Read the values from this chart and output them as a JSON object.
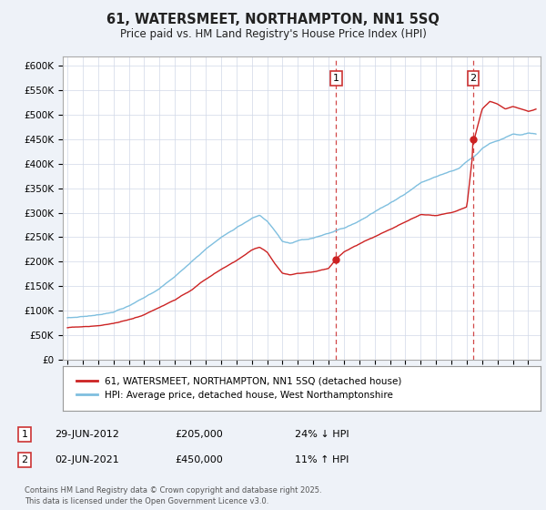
{
  "title": "61, WATERSMEET, NORTHAMPTON, NN1 5SQ",
  "subtitle": "Price paid vs. HM Land Registry's House Price Index (HPI)",
  "ytick_labels": [
    "£0",
    "£50K",
    "£100K",
    "£150K",
    "£200K",
    "£250K",
    "£300K",
    "£350K",
    "£400K",
    "£450K",
    "£500K",
    "£550K",
    "£600K"
  ],
  "yticks": [
    0,
    50000,
    100000,
    150000,
    200000,
    250000,
    300000,
    350000,
    400000,
    450000,
    500000,
    550000,
    600000
  ],
  "hpi_color": "#7fbfdf",
  "price_color": "#cc2222",
  "dashed_color": "#cc3333",
  "legend_label_price": "61, WATERSMEET, NORTHAMPTON, NN1 5SQ (detached house)",
  "legend_label_hpi": "HPI: Average price, detached house, West Northamptonshire",
  "annotation1_date": "29-JUN-2012",
  "annotation1_price": "£205,000",
  "annotation1_pct": "24% ↓ HPI",
  "annotation2_date": "02-JUN-2021",
  "annotation2_price": "£450,000",
  "annotation2_pct": "11% ↑ HPI",
  "footnote": "Contains HM Land Registry data © Crown copyright and database right 2025.\nThis data is licensed under the Open Government Licence v3.0.",
  "background_color": "#eef2f8",
  "plot_bg_color": "#ffffff",
  "grid_color": "#d0d8e8",
  "sale1_year": 2012.49,
  "sale2_year": 2021.42,
  "sale1_price": 205000,
  "sale2_price": 450000
}
